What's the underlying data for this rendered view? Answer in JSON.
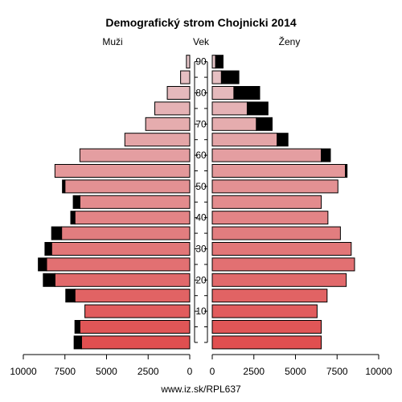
{
  "chart_data": {
    "type": "bar",
    "title": "Demografický strom Chojnicki 2014",
    "left_label": "Muži",
    "center_label": "Vek",
    "right_label": "Ženy",
    "age_groups": [
      "0-4",
      "5-9",
      "10-14",
      "15-19",
      "20-24",
      "25-29",
      "30-34",
      "35-39",
      "40-44",
      "45-49",
      "50-54",
      "55-59",
      "60-64",
      "65-69",
      "70-74",
      "75-79",
      "80-84",
      "85-89",
      "90+"
    ],
    "age_tick_labels": [
      "10",
      "20",
      "30",
      "40",
      "50",
      "60",
      "70",
      "80",
      "90"
    ],
    "age_tick_values": [
      10,
      20,
      30,
      40,
      50,
      60,
      70,
      80,
      90
    ],
    "x_tick_labels_left": [
      "10000",
      "7500",
      "5000",
      "2500",
      "0"
    ],
    "x_tick_labels_right": [
      "0",
      "2500",
      "5000",
      "7500",
      "10000"
    ],
    "x_tick_values": [
      10000,
      7500,
      5000,
      2500,
      0
    ],
    "xlim": [
      0,
      10000
    ],
    "series": [
      {
        "name": "Muži",
        "base": [
          6500,
          6600,
          6300,
          6900,
          8100,
          8600,
          8300,
          7700,
          6900,
          6600,
          7500,
          8100,
          6600,
          3900,
          2650,
          2100,
          1350,
          550,
          200
        ],
        "excess": [
          450,
          300,
          0,
          550,
          700,
          500,
          400,
          600,
          250,
          400,
          150,
          0,
          0,
          0,
          0,
          0,
          0,
          0,
          0
        ]
      },
      {
        "name": "Ženy",
        "base": [
          6550,
          6550,
          6300,
          6900,
          8050,
          8550,
          8350,
          7700,
          6950,
          6550,
          7550,
          8000,
          6550,
          3900,
          2650,
          2100,
          1300,
          550,
          200
        ],
        "excess": [
          0,
          0,
          0,
          0,
          0,
          0,
          0,
          0,
          0,
          0,
          0,
          100,
          550,
          650,
          950,
          1250,
          1550,
          1050,
          450
        ]
      }
    ],
    "bar_colors_young_to_old": [
      "#e04f50",
      "#e6c6c9"
    ],
    "excess_color": "#000000"
  },
  "footer": {
    "source": "www.iz.sk/RPL637"
  }
}
